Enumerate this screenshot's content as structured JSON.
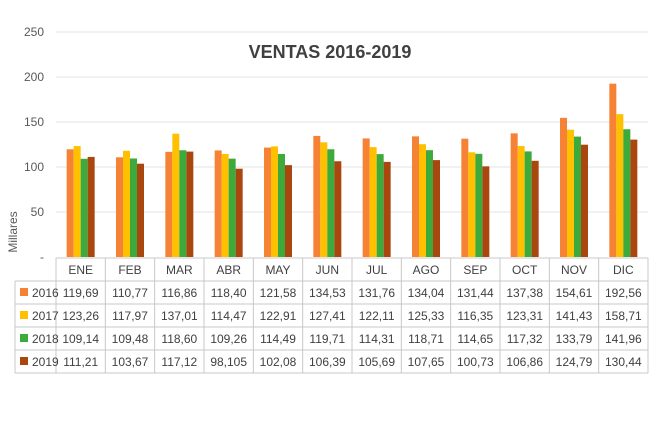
{
  "chart_data": {
    "type": "bar",
    "title": "VENTAS 2016-2019",
    "ylabel": "Millares",
    "ylim": [
      0,
      250
    ],
    "yticks": [
      "-",
      "50",
      "100",
      "150",
      "200",
      "250"
    ],
    "categories": [
      "ENE",
      "FEB",
      "MAR",
      "ABR",
      "MAY",
      "JUN",
      "JUL",
      "AGO",
      "SEP",
      "OCT",
      "NOV",
      "DIC"
    ],
    "legend_placement": "bottom data table",
    "grid": true,
    "series": [
      {
        "name": "2016",
        "color": "#F58235",
        "values": [
          119.69,
          110.77,
          116.86,
          118.4,
          121.58,
          134.53,
          131.76,
          134.04,
          131.44,
          137.38,
          154.61,
          192.56
        ],
        "labels": [
          "119,69",
          "110,77",
          "116,86",
          "118,40",
          "121,58",
          "134,53",
          "131,76",
          "134,04",
          "131,44",
          "137,38",
          "154,61",
          "192,56"
        ]
      },
      {
        "name": "2017",
        "color": "#FFC000",
        "values": [
          123.26,
          117.97,
          137.01,
          114.47,
          122.91,
          127.41,
          122.11,
          125.33,
          116.35,
          123.31,
          141.43,
          158.71
        ],
        "labels": [
          "123,26",
          "117,97",
          "137,01",
          "114,47",
          "122,91",
          "127,41",
          "122,11",
          "125,33",
          "116,35",
          "123,31",
          "141,43",
          "158,71"
        ]
      },
      {
        "name": "2018",
        "color": "#3DAA3D",
        "values": [
          109.14,
          109.48,
          118.6,
          109.26,
          114.49,
          119.71,
          114.31,
          118.71,
          114.65,
          117.32,
          133.79,
          141.96
        ],
        "labels": [
          "109,14",
          "109,48",
          "118,60",
          "109,26",
          "114,49",
          "119,71",
          "114,31",
          "118,71",
          "114,65",
          "117,32",
          "133,79",
          "141,96"
        ]
      },
      {
        "name": "2019",
        "color": "#A9470F",
        "values": [
          111.21,
          103.67,
          117.12,
          98.105,
          102.08,
          106.39,
          105.69,
          107.65,
          100.73,
          106.86,
          124.79,
          130.44
        ],
        "labels": [
          "111,21",
          "103,67",
          "117,12",
          "98,105",
          "102,08",
          "106,39",
          "105,69",
          "107,65",
          "100,73",
          "106,86",
          "124,79",
          "130,44"
        ]
      }
    ]
  }
}
